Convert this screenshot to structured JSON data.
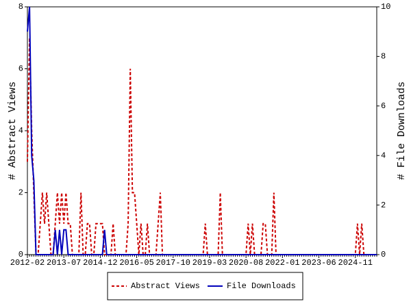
{
  "chart_data": {
    "type": "line",
    "ylabel": "# Abstract Views",
    "y2label": "# File Downloads",
    "categories": [
      "2012-02",
      null,
      null,
      null,
      null,
      null,
      null,
      null,
      null,
      null,
      null,
      null,
      null,
      null,
      null,
      null,
      null,
      "2013-07",
      null,
      null,
      null,
      null,
      null,
      null,
      null,
      null,
      null,
      null,
      null,
      null,
      null,
      null,
      null,
      null,
      "2014-12",
      null,
      null,
      null,
      null,
      null,
      null,
      null,
      null,
      null,
      null,
      null,
      null,
      null,
      null,
      null,
      null,
      "2016-05",
      null,
      null,
      null,
      null,
      null,
      null,
      null,
      null,
      null,
      null,
      null,
      null,
      null,
      null,
      null,
      null,
      "2017-10",
      null,
      null,
      null,
      null,
      null,
      null,
      null,
      null,
      null,
      null,
      null,
      null,
      null,
      null,
      null,
      null,
      "2019-03",
      null,
      null,
      null,
      null,
      null,
      null,
      null,
      null,
      null,
      null,
      null,
      null,
      null,
      null,
      null,
      null,
      "2020-08",
      null,
      null,
      null,
      null,
      null,
      null,
      null,
      null,
      null,
      null,
      null,
      null,
      null,
      null,
      null,
      null,
      "2022-01",
      null,
      null,
      null,
      null,
      null,
      null,
      null,
      null,
      null,
      null,
      null,
      null,
      null,
      null,
      null,
      null,
      "2023-06",
      null,
      null,
      null,
      null,
      null,
      null,
      null,
      null,
      null,
      null,
      null,
      null,
      null,
      null,
      null,
      null,
      "2024-11",
      null,
      null,
      null,
      null,
      null,
      null,
      null,
      null,
      null,
      null
    ],
    "series": [
      {
        "name": "Abstract Views",
        "color": "#cc0000",
        "line_style": "dashed",
        "values": [
          3,
          7,
          4,
          2,
          0,
          0,
          1,
          2,
          1,
          2,
          1,
          0,
          0,
          1,
          2,
          1,
          2,
          1,
          2,
          1,
          1,
          0,
          0,
          0,
          0,
          2,
          0,
          0,
          1,
          1,
          0,
          0,
          1,
          1,
          1,
          1,
          0,
          0,
          0,
          0,
          1,
          0,
          0,
          0,
          0,
          0,
          0,
          1,
          6,
          2,
          2,
          1,
          0,
          1,
          0,
          0,
          1,
          0,
          0,
          0,
          0,
          1,
          2,
          0,
          0,
          0,
          0,
          0,
          0,
          0,
          0,
          0,
          0,
          0,
          0,
          0,
          0,
          0,
          0,
          0,
          0,
          0,
          0,
          1,
          0,
          0,
          0,
          0,
          0,
          0,
          2,
          0,
          0,
          0,
          0,
          0,
          0,
          0,
          0,
          0,
          0,
          0,
          0,
          1,
          0,
          1,
          0,
          0,
          0,
          0,
          1,
          1,
          0,
          0,
          0,
          2,
          0,
          0,
          0,
          0,
          0,
          0,
          0,
          0,
          0,
          0,
          0,
          0,
          0,
          0,
          0,
          0,
          0,
          0,
          0,
          0,
          0,
          0,
          0,
          0,
          0,
          0,
          0,
          0,
          0,
          0,
          0,
          0,
          0,
          0,
          0,
          0,
          0,
          0,
          1,
          0,
          1,
          0,
          0,
          0,
          0,
          0,
          0,
          0
        ]
      },
      {
        "name": "File Downloads",
        "color": "#0000bb",
        "line_style": "solid",
        "axis": "y2",
        "values": [
          9,
          10,
          4,
          3,
          0,
          0,
          0,
          0,
          0,
          0,
          0,
          0,
          0,
          1,
          0,
          1,
          0,
          1,
          1,
          0,
          0,
          0,
          0,
          0,
          0,
          0,
          0,
          0,
          0,
          0,
          0,
          0,
          0,
          0,
          0,
          0,
          1,
          0,
          0,
          0,
          0,
          0,
          0,
          0,
          0,
          0,
          0,
          0,
          0,
          0,
          0,
          0,
          0,
          0,
          0,
          0,
          0,
          0,
          0,
          0,
          0,
          0,
          0,
          0,
          0,
          0,
          0,
          0,
          0,
          0,
          0,
          0,
          0,
          0,
          0,
          0,
          0,
          0,
          0,
          0,
          0,
          0,
          0,
          0,
          0,
          0,
          0,
          0,
          0,
          0,
          0,
          0,
          0,
          0,
          0,
          0,
          0,
          0,
          0,
          0,
          0,
          0,
          0,
          0,
          0,
          0,
          0,
          0,
          0,
          0,
          0,
          0,
          0,
          0,
          0,
          0,
          0,
          0,
          0,
          0,
          0,
          0,
          0,
          0,
          0,
          0,
          0,
          0,
          0,
          0,
          0,
          0,
          0,
          0,
          0,
          0,
          0,
          0,
          0,
          0,
          0,
          0,
          0,
          0,
          0,
          0,
          0,
          0,
          0,
          0,
          0,
          0,
          0,
          0,
          0,
          0,
          0,
          0,
          0,
          0,
          0,
          0,
          0,
          0
        ]
      }
    ],
    "ylim": [
      0,
      8
    ],
    "yticks": [
      0,
      2,
      4,
      6,
      8
    ],
    "y2lim": [
      0,
      10
    ],
    "y2ticks": [
      0,
      2,
      4,
      6,
      8,
      10
    ],
    "grid": false,
    "legend": "bottom"
  }
}
